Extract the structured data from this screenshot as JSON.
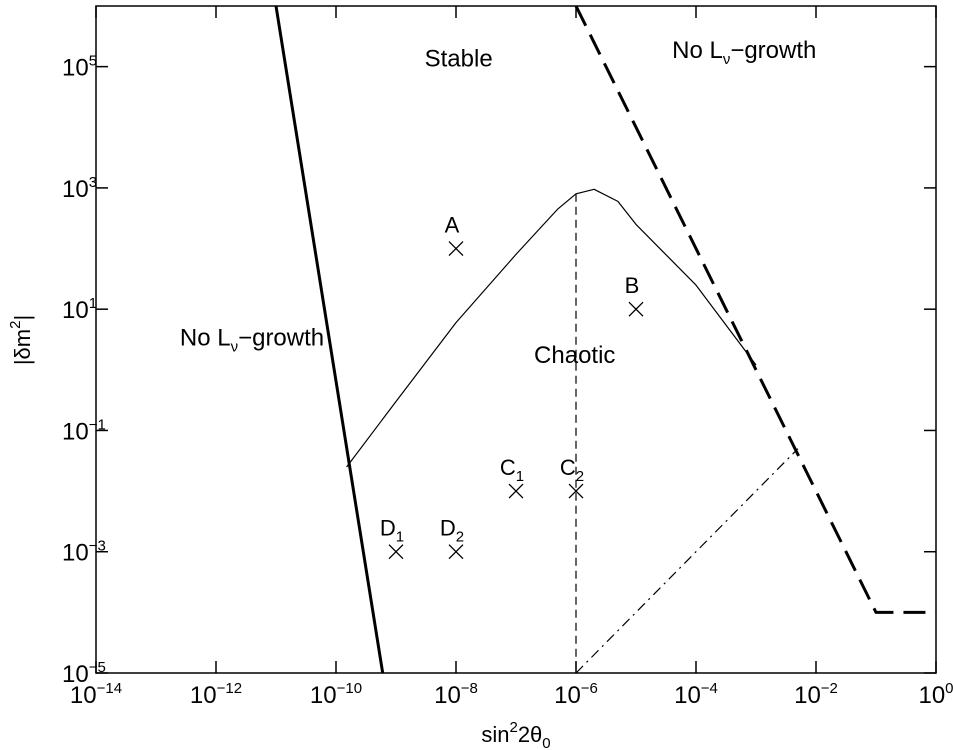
{
  "chart_data": {
    "type": "line",
    "x_scale": "log",
    "y_scale": "log",
    "xlim": [
      1e-14,
      1
    ],
    "ylim": [
      1e-05,
      1000000.0
    ],
    "grid": false,
    "xlabel": {
      "base": "sin",
      "sup": "2",
      "rest": "2θ",
      "sub": "0"
    },
    "ylabel": {
      "left": "|δm",
      "sup": "2",
      "right": "|"
    },
    "x_ticks": [
      {
        "base": "10",
        "exp": "−14",
        "value": 1e-14
      },
      {
        "base": "10",
        "exp": "−12",
        "value": 1e-12
      },
      {
        "base": "10",
        "exp": "−10",
        "value": 1e-10
      },
      {
        "base": "10",
        "exp": "−8",
        "value": 1e-08
      },
      {
        "base": "10",
        "exp": "−6",
        "value": 1e-06
      },
      {
        "base": "10",
        "exp": "−4",
        "value": 0.0001
      },
      {
        "base": "10",
        "exp": "−2",
        "value": 0.01
      },
      {
        "base": "10",
        "exp": "0",
        "value": 1
      }
    ],
    "y_ticks": [
      {
        "base": "10",
        "exp": "−5",
        "value": 1e-05
      },
      {
        "base": "10",
        "exp": "−3",
        "value": 0.001
      },
      {
        "base": "10",
        "exp": "−1",
        "value": 0.1
      },
      {
        "base": "10",
        "exp": "1",
        "value": 10
      },
      {
        "base": "10",
        "exp": "3",
        "value": 1000.0
      },
      {
        "base": "10",
        "exp": "5",
        "value": 100000.0
      }
    ],
    "series": [
      {
        "style": "thick-solid",
        "x": [
          1e-11,
          6e-10
        ],
        "y": [
          1000000.0,
          1e-05
        ]
      },
      {
        "style": "thick-dashed",
        "x": [
          1e-06,
          0.1,
          1
        ],
        "y": [
          1000000.0,
          0.0001,
          0.0001
        ]
      },
      {
        "style": "thin-solid",
        "x": [
          1.5e-10,
          1e-09,
          1e-08,
          1e-07,
          5e-07,
          1e-06,
          2e-06,
          5e-06,
          1e-05,
          0.0001,
          0.001
        ],
        "y": [
          0.025,
          0.3,
          6,
          80,
          450,
          800,
          950,
          600,
          250,
          25,
          1.2
        ]
      },
      {
        "style": "thin-dashed",
        "x": [
          1e-06,
          1e-06
        ],
        "y": [
          800,
          1e-05
        ]
      },
      {
        "style": "dash-dot",
        "x": [
          1e-06,
          0.005
        ],
        "y": [
          1e-05,
          0.05
        ]
      }
    ],
    "points": [
      {
        "label": "A",
        "sub": "",
        "x": 1e-08,
        "y": 100
      },
      {
        "label": "B",
        "sub": "",
        "x": 1e-05,
        "y": 10
      },
      {
        "label": "C",
        "sub": "1",
        "x": 1e-07,
        "y": 0.01
      },
      {
        "label": "C",
        "sub": "2",
        "x": 1e-06,
        "y": 0.01
      },
      {
        "label": "D",
        "sub": "1",
        "x": 1e-09,
        "y": 0.001
      },
      {
        "label": "D",
        "sub": "2",
        "x": 1e-08,
        "y": 0.001
      }
    ],
    "annotations": [
      {
        "id": "stable",
        "text": "Stable",
        "x": 3e-09,
        "y": 100000.0
      },
      {
        "id": "chaotic",
        "text": "Chaotic",
        "x": 2e-07,
        "y": 1.3
      },
      {
        "id": "nol-left",
        "text": "No L",
        "sub": "ν",
        "rest": "−growth",
        "x": 2.5e-13,
        "y": 2.5
      },
      {
        "id": "nol-right",
        "text": "No L",
        "sub": "ν",
        "rest": "−growth",
        "x": 4e-05,
        "y": 140000.0
      }
    ]
  }
}
